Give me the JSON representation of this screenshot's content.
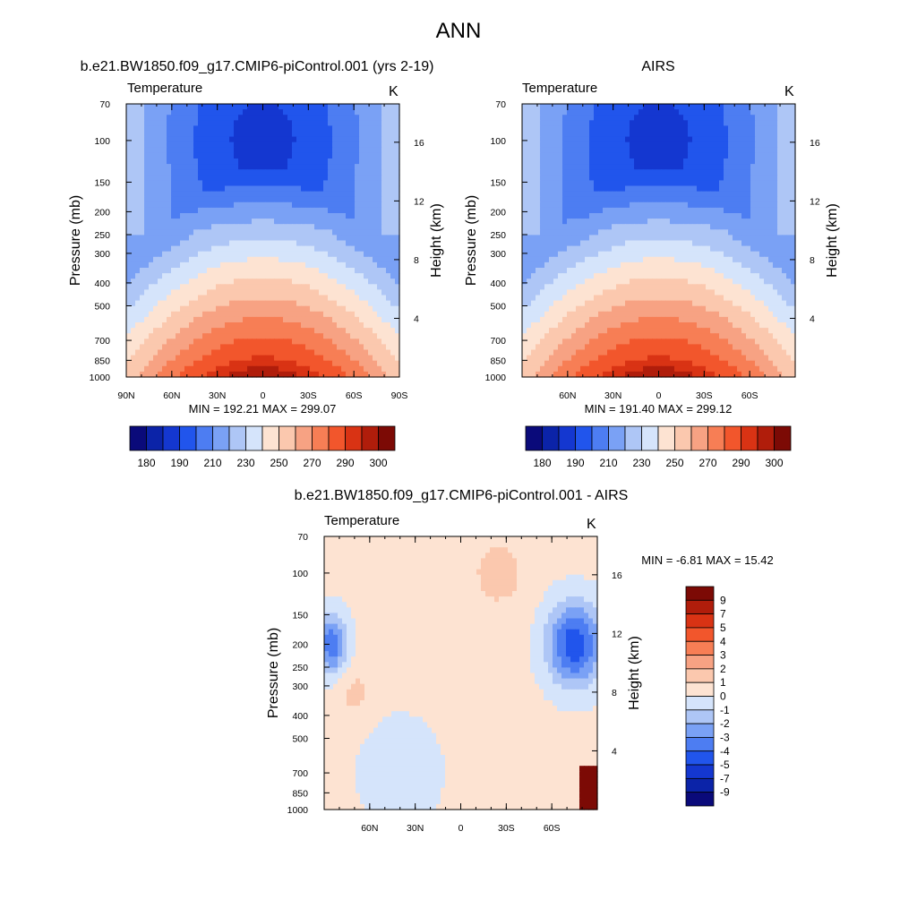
{
  "figure": {
    "title": "ANN"
  },
  "colors": {
    "abs": [
      "#0a0a7a",
      "#0b23a8",
      "#1437d0",
      "#2155ec",
      "#4d7df2",
      "#7aa1f5",
      "#aec6f6",
      "#d5e4fb",
      "#fde3d2",
      "#fbc8ae",
      "#f7a283",
      "#f77e55",
      "#f2562c",
      "#d93314",
      "#b01d0b",
      "#7c0a05"
    ],
    "diff": [
      "#0a0a7a",
      "#0b23a8",
      "#1437d0",
      "#2155ec",
      "#4d7df2",
      "#7aa1f5",
      "#aec6f6",
      "#d5e4fb",
      "#fde3d2",
      "#fbc8ae",
      "#f7a283",
      "#f77e55",
      "#f2562c",
      "#d93314",
      "#b01d0b",
      "#7c0a05"
    ]
  },
  "axis": {
    "pressure_label": "Pressure (mb)",
    "height_label": "Height (km)",
    "pressure_ticks": [
      "70",
      "100",
      "150",
      "200",
      "250",
      "300",
      "400",
      "500",
      "700",
      "850",
      "1000"
    ],
    "pressure_values": [
      70,
      100,
      150,
      200,
      250,
      300,
      400,
      500,
      700,
      850,
      1000
    ],
    "height_ticks": [
      "16",
      "12",
      "8",
      "4"
    ],
    "height_values": [
      16,
      12,
      8,
      4
    ],
    "lat_ticks_full": [
      "90N",
      "60N",
      "30N",
      "0",
      "30S",
      "60S",
      "90S"
    ],
    "lat_ticks_inner": [
      "60N",
      "30N",
      "0",
      "30S",
      "60S"
    ]
  },
  "chart_data": [
    {
      "type": "heatmap",
      "title": "b.e21.BW1850.f09_g17.CMIP6-piControl.001 (yrs 2-19)",
      "left_label": "Temperature",
      "right_label": "K",
      "variable": "Temperature",
      "units": "K",
      "xlim": [
        90,
        -90
      ],
      "ylim": [
        1000,
        70
      ],
      "stats": "MIN = 192.21  MAX = 299.07",
      "min": 192.21,
      "max": 299.07,
      "colorbar_ticks": [
        "180",
        "190",
        "210",
        "230",
        "250",
        "270",
        "290",
        "300"
      ]
    },
    {
      "type": "heatmap",
      "title": "AIRS",
      "left_label": "Temperature",
      "right_label": "K",
      "variable": "Temperature",
      "units": "K",
      "xlim": [
        90,
        -90
      ],
      "ylim": [
        1000,
        70
      ],
      "stats": "MIN = 191.40  MAX = 299.12",
      "min": 191.4,
      "max": 299.12,
      "colorbar_ticks": [
        "180",
        "190",
        "210",
        "230",
        "250",
        "270",
        "290",
        "300"
      ]
    },
    {
      "type": "heatmap",
      "title": "b.e21.BW1850.f09_g17.CMIP6-piControl.001 - AIRS",
      "left_label": "Temperature",
      "right_label": "K",
      "variable": "Temperature difference",
      "units": "K",
      "xlim": [
        90,
        -90
      ],
      "ylim": [
        1000,
        70
      ],
      "stats": "MIN =  -6.81  MAX =  15.42",
      "min": -6.81,
      "max": 15.42,
      "colorbar_ticks": [
        "9",
        "7",
        "5",
        "4",
        "3",
        "2",
        "1",
        "0",
        "-1",
        "-2",
        "-3",
        "-4",
        "-5",
        "-7",
        "-9"
      ],
      "colorbar_levels": [
        9,
        7,
        5,
        4,
        3,
        2,
        1,
        0,
        -1,
        -2,
        -3,
        -4,
        -5,
        -7,
        -9
      ]
    }
  ]
}
